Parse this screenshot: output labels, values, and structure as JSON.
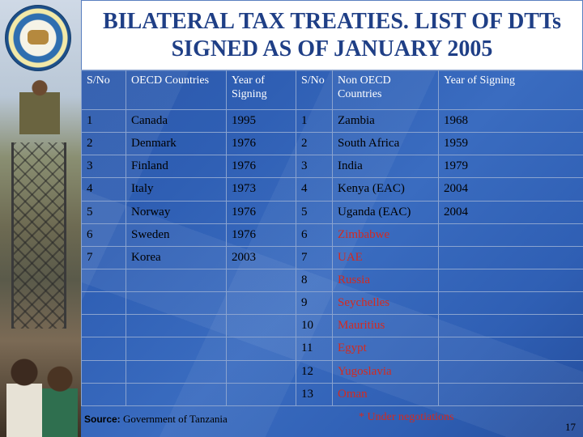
{
  "title": {
    "line1": "BILATERAL TAX TREATIES. LIST OF DTTs",
    "line2": "SIGNED AS OF JANUARY 2005"
  },
  "headers": {
    "sno_left": "S/No",
    "oecd": "OECD Countries",
    "year_left": "Year of Signing",
    "sno_right": "S/No",
    "non_oecd": "Non OECD Countries",
    "year_right": "Year of Signing"
  },
  "oecd_rows": [
    {
      "sno": "1",
      "country": "Canada",
      "year": "1995"
    },
    {
      "sno": "2",
      "country": "Denmark",
      "year": "1976"
    },
    {
      "sno": "3",
      "country": "Finland",
      "year": "1976"
    },
    {
      "sno": "4",
      "country": "Italy",
      "year": "1973"
    },
    {
      "sno": "5",
      "country": "Norway",
      "year": "1976"
    },
    {
      "sno": "6",
      "country": "Sweden",
      "year": "1976"
    },
    {
      "sno": "7",
      "country": "Korea",
      "year": "2003"
    }
  ],
  "non_oecd_rows": [
    {
      "sno": "1",
      "country": "Zambia",
      "year": "1968",
      "pending": false
    },
    {
      "sno": "2",
      "country": "South Africa",
      "year": "1959",
      "pending": false
    },
    {
      "sno": "3",
      "country": "India",
      "year": "1979",
      "pending": false
    },
    {
      "sno": "4",
      "country": "Kenya (EAC)",
      "year": "2004",
      "pending": false
    },
    {
      "sno": "5",
      "country": "Uganda (EAC)",
      "year": "2004",
      "pending": false
    },
    {
      "sno": "6",
      "country": "Zimbabwe",
      "year": "",
      "pending": true
    },
    {
      "sno": "7",
      "country": "UAE",
      "year": "",
      "pending": true
    },
    {
      "sno": "8",
      "country": "Russia",
      "year": "",
      "pending": true
    },
    {
      "sno": "9",
      "country": "Seychelles",
      "year": "",
      "pending": true
    },
    {
      "sno": "10",
      "country": "Mauritius",
      "year": "",
      "pending": true
    },
    {
      "sno": "11",
      "country": "Egypt",
      "year": "",
      "pending": true
    },
    {
      "sno": "12",
      "country": "Yugoslavia",
      "year": "",
      "pending": true
    },
    {
      "sno": "13",
      "country": "Oman",
      "year": "",
      "pending": true
    }
  ],
  "source": {
    "label": "Source:",
    "text": " Government of Tanzania"
  },
  "note": "* Under negotiations",
  "page_number": "17",
  "colors": {
    "title_text": "#1f3f86",
    "panel_blue": "#2f5fb4",
    "pending_red": "#d42a1f"
  }
}
